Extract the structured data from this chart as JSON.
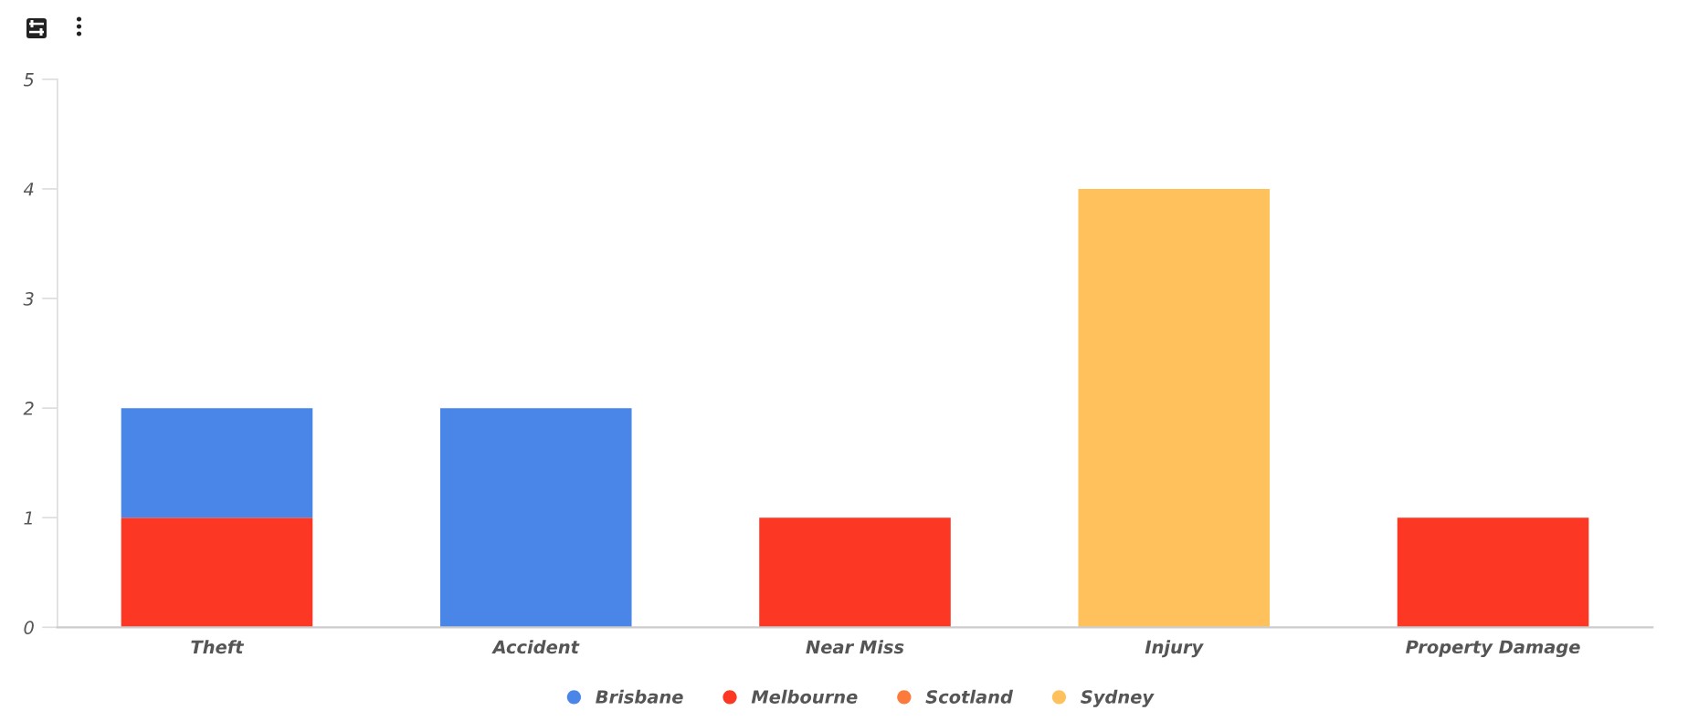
{
  "chart_data": {
    "type": "bar",
    "stacked": true,
    "categories": [
      "Theft",
      "Accident",
      "Near Miss",
      "Injury",
      "Property Damage"
    ],
    "series": [
      {
        "name": "Sydney",
        "color": "#fec15c",
        "values": [
          null,
          null,
          null,
          4,
          null
        ]
      },
      {
        "name": "Scotland",
        "color": "#fc7a3c",
        "values": [
          null,
          null,
          null,
          null,
          null
        ]
      },
      {
        "name": "Melbourne",
        "color": "#fc3824",
        "values": [
          1,
          null,
          1,
          null,
          1
        ]
      },
      {
        "name": "Brisbane",
        "color": "#4a86e8",
        "values": [
          1,
          2,
          null,
          null,
          null
        ]
      }
    ],
    "ylim": [
      0,
      5
    ],
    "yticks": [
      0,
      1,
      2,
      3,
      4,
      5
    ],
    "grid": false,
    "legend": "bottom"
  }
}
